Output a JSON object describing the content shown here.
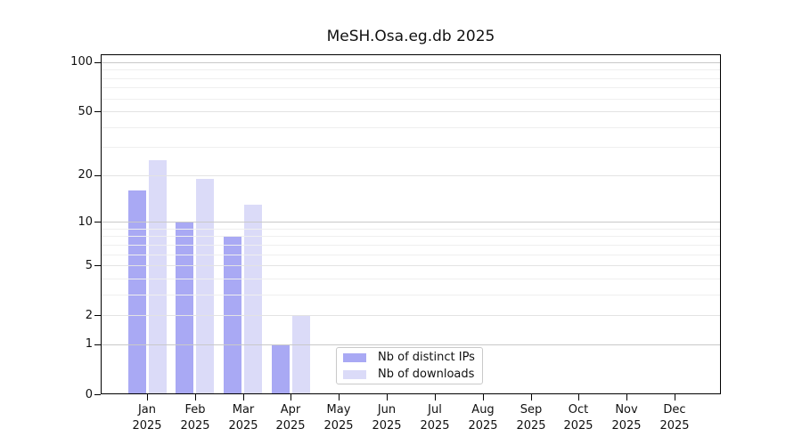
{
  "chart_data": {
    "type": "bar",
    "title": "MeSH.Osa.eg.db 2025",
    "categories": [
      "Jan 2025",
      "Feb 2025",
      "Mar 2025",
      "Apr 2025",
      "May 2025",
      "Jun 2025",
      "Jul 2025",
      "Aug 2025",
      "Sep 2025",
      "Oct 2025",
      "Nov 2025",
      "Dec 2025"
    ],
    "series": [
      {
        "name": "Nb of distinct IPs",
        "color": "#a9a9f4",
        "values": [
          16,
          10,
          8,
          1,
          0,
          0,
          0,
          0,
          0,
          0,
          0,
          0
        ]
      },
      {
        "name": "Nb of downloads",
        "color": "#dbdbf8",
        "values": [
          25,
          19,
          13,
          2,
          0,
          0,
          0,
          0,
          0,
          0,
          0,
          0
        ]
      }
    ],
    "xlabel": "",
    "ylabel": "",
    "yaxis": {
      "scale": "log1p",
      "ticks": [
        0,
        1,
        2,
        5,
        10,
        20,
        50,
        100
      ],
      "tick_labels": [
        "0",
        "1",
        "2",
        "5",
        "10",
        "20",
        "50",
        "100"
      ],
      "strong_gridlines": [
        1,
        10,
        100
      ],
      "mid_gridlines": [
        2,
        5,
        20,
        50
      ],
      "minor_gridlines": [
        3,
        4,
        6,
        7,
        8,
        9,
        30,
        40,
        60,
        70,
        80,
        90
      ],
      "ylim": [
        0,
        112
      ]
    },
    "grid": true,
    "legend": {
      "position": "lower-center"
    },
    "colors": {
      "background": "#ffffff",
      "spine": "#000000",
      "text": "#111111",
      "grid_strong": "#c9c9c9",
      "grid_mid": "#e3e3e3",
      "grid_weak": "#efefef"
    }
  }
}
